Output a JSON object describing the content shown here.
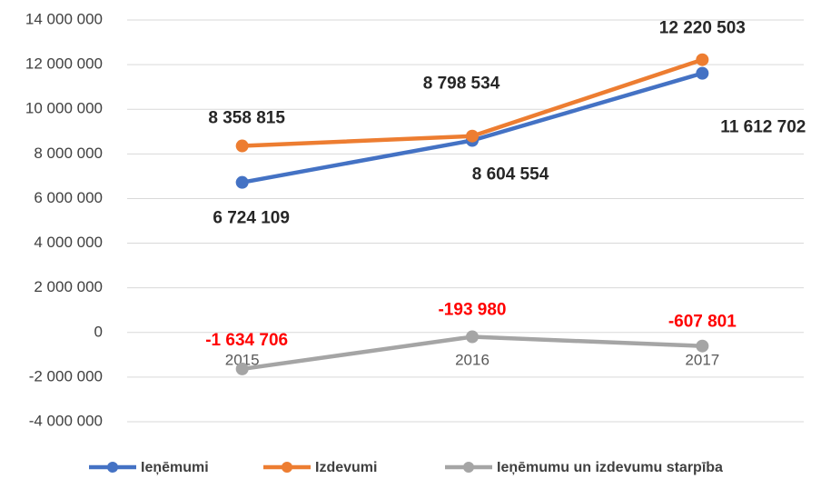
{
  "chart_data": {
    "type": "line",
    "categories": [
      "2015",
      "2016",
      "2017"
    ],
    "series": [
      {
        "name": "Ieņēmumi",
        "color": "#4472c4",
        "values": [
          6724109,
          8604554,
          11612702
        ],
        "value_labels": [
          "6 724 109",
          "8 604 554",
          "11 612 702"
        ],
        "label_color": "#262626"
      },
      {
        "name": "Izdevumi",
        "color": "#ed7d31",
        "values": [
          8358815,
          8798534,
          12220503
        ],
        "value_labels": [
          "8 358 815",
          "8 798 534",
          "12 220 503"
        ],
        "label_color": "#262626"
      },
      {
        "name": "Ieņēmumu un izdevumu starpība",
        "color": "#a5a5a5",
        "values": [
          -1634706,
          -193980,
          -607801
        ],
        "value_labels": [
          "-1 634 706",
          "-193 980",
          "-607 801"
        ],
        "label_color": "#ff0000"
      }
    ],
    "ylim": [
      -4000000,
      14000000
    ],
    "yticks": [
      {
        "value": -4000000,
        "label": "-4 000 000"
      },
      {
        "value": -2000000,
        "label": "-2 000 000"
      },
      0,
      {
        "value": 2000000,
        "label": "2 000 000"
      },
      {
        "value": 4000000,
        "label": "4 000 000"
      },
      {
        "value": 6000000,
        "label": "6 000 000"
      },
      {
        "value": 8000000,
        "label": "8 000 000"
      },
      {
        "value": 10000000,
        "label": "10 000 000"
      },
      {
        "value": 12000000,
        "label": "12 000 000"
      },
      {
        "value": 14000000,
        "label": "14 000 000"
      }
    ],
    "grid": true,
    "legend": "bottom"
  }
}
